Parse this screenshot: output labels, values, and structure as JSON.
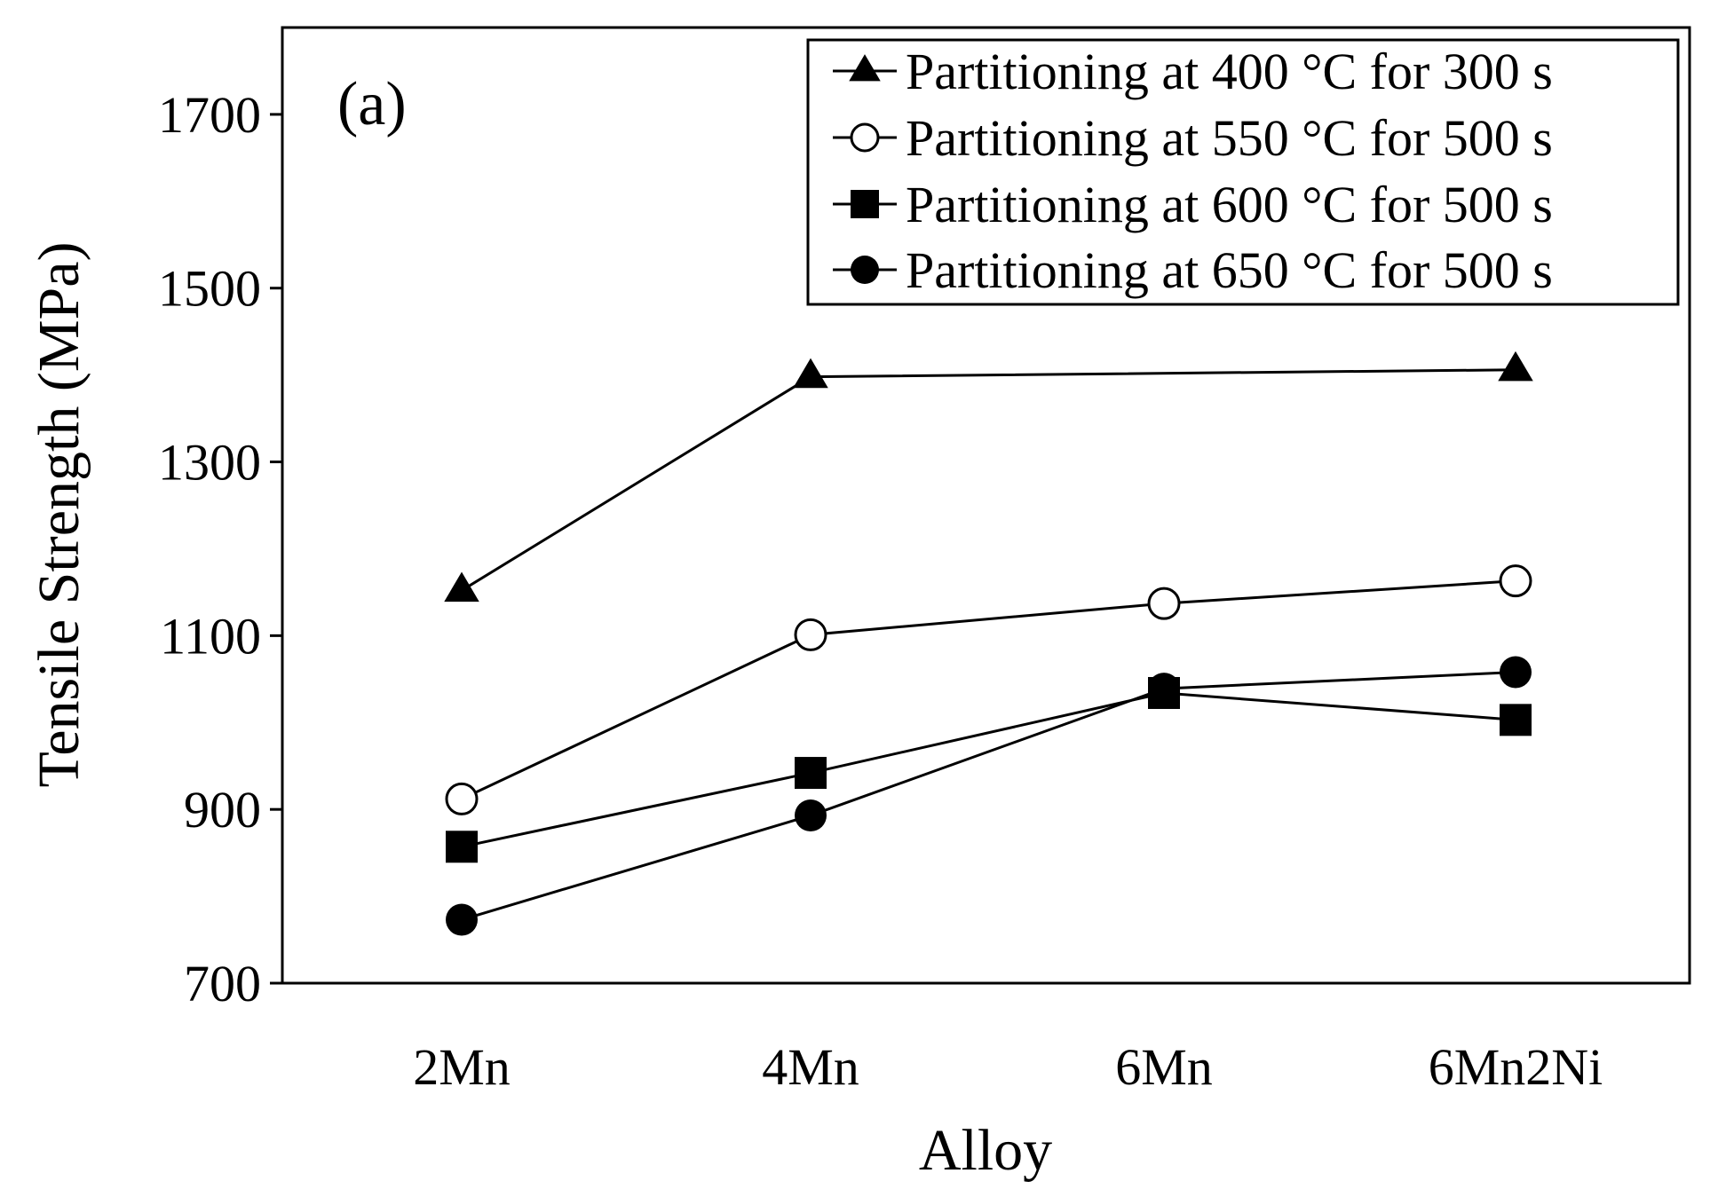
{
  "chart_data": {
    "type": "line",
    "panel_label": "(a)",
    "title": "",
    "xlabel": "Alloy",
    "ylabel": "Tensile Strength (MPa)",
    "categories": [
      "2Mn",
      "4Mn",
      "6Mn",
      "6Mn2Ni"
    ],
    "ylim": [
      700,
      1800
    ],
    "yticks": [
      700,
      900,
      1100,
      1300,
      1500,
      1700
    ],
    "ytick_labels": [
      "700",
      "900",
      "1100",
      "1300",
      "1500",
      "1700"
    ],
    "grid": false,
    "legend_position": "top-right",
    "series": [
      {
        "name": "Partitioning at 400 °C for 300 s",
        "marker": "triangle-filled",
        "values": [
          1152,
          1398,
          null,
          1406
        ]
      },
      {
        "name": "Partitioning at 550 °C for 500 s",
        "marker": "circle-open",
        "values": [
          912,
          1101,
          1137,
          1163
        ]
      },
      {
        "name": "Partitioning at 600 °C for 500 s",
        "marker": "square-filled",
        "values": [
          857,
          942,
          1034,
          1003
        ]
      },
      {
        "name": "Partitioning at 650 °C for 500 s",
        "marker": "circle-filled",
        "values": [
          773,
          893,
          1039,
          1058
        ]
      }
    ]
  }
}
